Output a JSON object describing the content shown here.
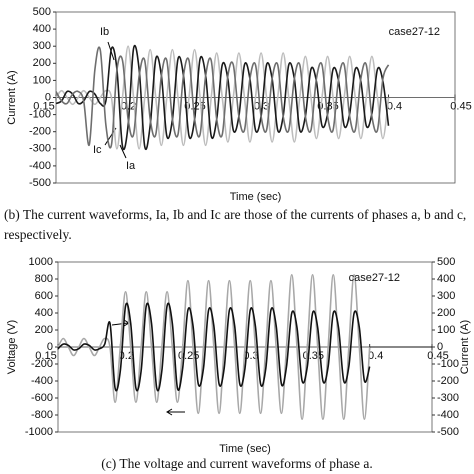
{
  "chart_data": [
    {
      "type": "line",
      "y_label": "Current (A)",
      "x_label": "Time (sec)",
      "annotation": "case27-12",
      "xlim": [
        0.15,
        0.45
      ],
      "xticks": [
        0.15,
        0.2,
        0.25,
        0.3,
        0.35,
        0.4,
        0.45
      ],
      "ylim": [
        -500,
        500
      ],
      "yticks": [
        -500,
        -400,
        -300,
        -200,
        -100,
        0,
        100,
        200,
        300,
        400,
        500
      ],
      "x": [
        0.15,
        0.1542,
        0.1583,
        0.1625,
        0.1667,
        0.1708,
        0.175,
        0.1792,
        0.1833,
        0.1875,
        0.1917,
        0.1958,
        0.2,
        0.2042,
        0.2083,
        0.2125,
        0.2167,
        0.2208,
        0.225,
        0.2292,
        0.2333,
        0.2375,
        0.2417,
        0.2458,
        0.25,
        0.2542,
        0.2583,
        0.2625,
        0.2667,
        0.2708,
        0.275,
        0.2792,
        0.2833,
        0.2875,
        0.2917,
        0.2958,
        0.3,
        0.3042,
        0.3083,
        0.3125,
        0.3167,
        0.3208,
        0.325,
        0.3292,
        0.3333,
        0.3375,
        0.3417,
        0.3458,
        0.35,
        0.3542,
        0.3583,
        0.3625,
        0.3667,
        0.3708,
        0.375,
        0.3792,
        0.3833,
        0.3875,
        0.3917,
        0.3958,
        0.4
      ],
      "series": [
        {
          "name": "Ia",
          "color": "#bdbdbd",
          "values": [
            0,
            40,
            0,
            -40,
            0,
            40,
            0,
            -40,
            0,
            40,
            0,
            -300,
            0,
            300,
            0,
            -300,
            0,
            280,
            0,
            -280,
            0,
            280,
            0,
            -280,
            0,
            280,
            0,
            -280,
            0,
            260,
            0,
            -260,
            0,
            260,
            0,
            -260,
            0,
            260,
            0,
            -260,
            0,
            260,
            0,
            -260,
            0,
            240,
            0,
            -240,
            0,
            240,
            0,
            -240,
            0,
            240,
            0,
            -240,
            0,
            240,
            0,
            -240,
            0
          ]
        },
        {
          "name": "Ib",
          "color": "#1a1a1a",
          "values": [
            -35,
            -20,
            35,
            20,
            -35,
            -20,
            35,
            20,
            -35,
            -20,
            286,
            165,
            -286,
            -165,
            286,
            165,
            -286,
            -165,
            225,
            130,
            -225,
            -130,
            225,
            130,
            -225,
            -130,
            225,
            130,
            -225,
            -130,
            191,
            110,
            -191,
            -110,
            191,
            110,
            -191,
            -110,
            191,
            110,
            -191,
            -110,
            191,
            110,
            -191,
            -110,
            165,
            95,
            -165,
            -95,
            165,
            95,
            -165,
            -95,
            165,
            95,
            -165,
            -95,
            165,
            95,
            -165
          ]
        },
        {
          "name": "Ic",
          "color": "#6e6e6e",
          "values": [
            35,
            -20,
            -35,
            20,
            35,
            -20,
            -277,
            160,
            277,
            -160,
            -277,
            160,
            217,
            -125,
            -217,
            125,
            217,
            -125,
            -217,
            125,
            217,
            -125,
            -217,
            125,
            217,
            -125,
            -217,
            125,
            217,
            -125,
            -217,
            125,
            191,
            -110,
            -191,
            110,
            191,
            -110,
            -191,
            110,
            191,
            -110,
            -191,
            110,
            191,
            -110,
            -191,
            110,
            191,
            -110,
            -191,
            110,
            191,
            -110,
            -191,
            110,
            191,
            -110,
            -191,
            110,
            191
          ]
        }
      ]
    },
    {
      "type": "line",
      "y_label": "Voltage (V)",
      "y2_label": "Current (A)",
      "x_label": "Time (sec)",
      "annotation": "case27-12",
      "xlim": [
        0.15,
        0.45
      ],
      "xticks": [
        0.15,
        0.2,
        0.25,
        0.3,
        0.35,
        0.4,
        0.45
      ],
      "ylim": [
        -1000,
        1000
      ],
      "yticks": [
        -1000,
        -800,
        -600,
        -400,
        -200,
        0,
        200,
        400,
        600,
        800,
        1000
      ],
      "y2lim": [
        -500,
        500
      ],
      "y2ticks": [
        -500,
        -400,
        -300,
        -200,
        -100,
        0,
        100,
        200,
        300,
        400,
        500
      ],
      "x": [
        0.15,
        0.1542,
        0.1583,
        0.1625,
        0.1667,
        0.1708,
        0.175,
        0.1792,
        0.1833,
        0.1875,
        0.1917,
        0.1958,
        0.2,
        0.2042,
        0.2083,
        0.2125,
        0.2167,
        0.2208,
        0.225,
        0.2292,
        0.2333,
        0.2375,
        0.2417,
        0.2458,
        0.25,
        0.2542,
        0.2583,
        0.2625,
        0.2667,
        0.2708,
        0.275,
        0.2792,
        0.2833,
        0.2875,
        0.2917,
        0.2958,
        0.3,
        0.3042,
        0.3083,
        0.3125,
        0.3167,
        0.3208,
        0.325,
        0.3292,
        0.3333,
        0.3375,
        0.3417,
        0.3458,
        0.35,
        0.3542,
        0.3583,
        0.3625,
        0.3667,
        0.3708,
        0.375,
        0.3792,
        0.3833,
        0.3875,
        0.3917,
        0.3958,
        0.4
      ],
      "series": [
        {
          "color": "#a8a8a8",
          "values": [
            0,
            100,
            0,
            -100,
            0,
            100,
            0,
            -100,
            0,
            100,
            0,
            -650,
            0,
            650,
            0,
            -650,
            0,
            650,
            0,
            -650,
            0,
            650,
            0,
            -650,
            0,
            780,
            0,
            -780,
            0,
            780,
            0,
            -780,
            0,
            780,
            0,
            -780,
            0,
            780,
            0,
            -780,
            0,
            780,
            0,
            -780,
            0,
            850,
            0,
            -850,
            0,
            850,
            0,
            -850,
            0,
            850,
            0,
            -850,
            0,
            850,
            0,
            -850,
            0
          ]
        },
        {
          "color": "#111111",
          "axis": "y2",
          "values": [
            -10,
            17,
            10,
            -17,
            -10,
            17,
            10,
            -17,
            -10,
            17,
            140,
            -242,
            -140,
            242,
            140,
            -242,
            -140,
            242,
            140,
            -242,
            -140,
            242,
            140,
            -242,
            -125,
            217,
            125,
            -217,
            -125,
            217,
            125,
            -217,
            -125,
            217,
            125,
            -217,
            -125,
            217,
            125,
            -217,
            -125,
            217,
            125,
            -217,
            -115,
            199,
            115,
            -199,
            -115,
            199,
            115,
            -199,
            -115,
            199,
            115,
            -199,
            -115,
            199,
            115,
            -199,
            -115
          ]
        }
      ]
    }
  ],
  "caption_b": "(b)  The current waveforms, Ia, Ib and Ic are those of the currents of phases a, b and c, respectively.",
  "caption_c": "(c) The voltage and current waveforms of phase a."
}
